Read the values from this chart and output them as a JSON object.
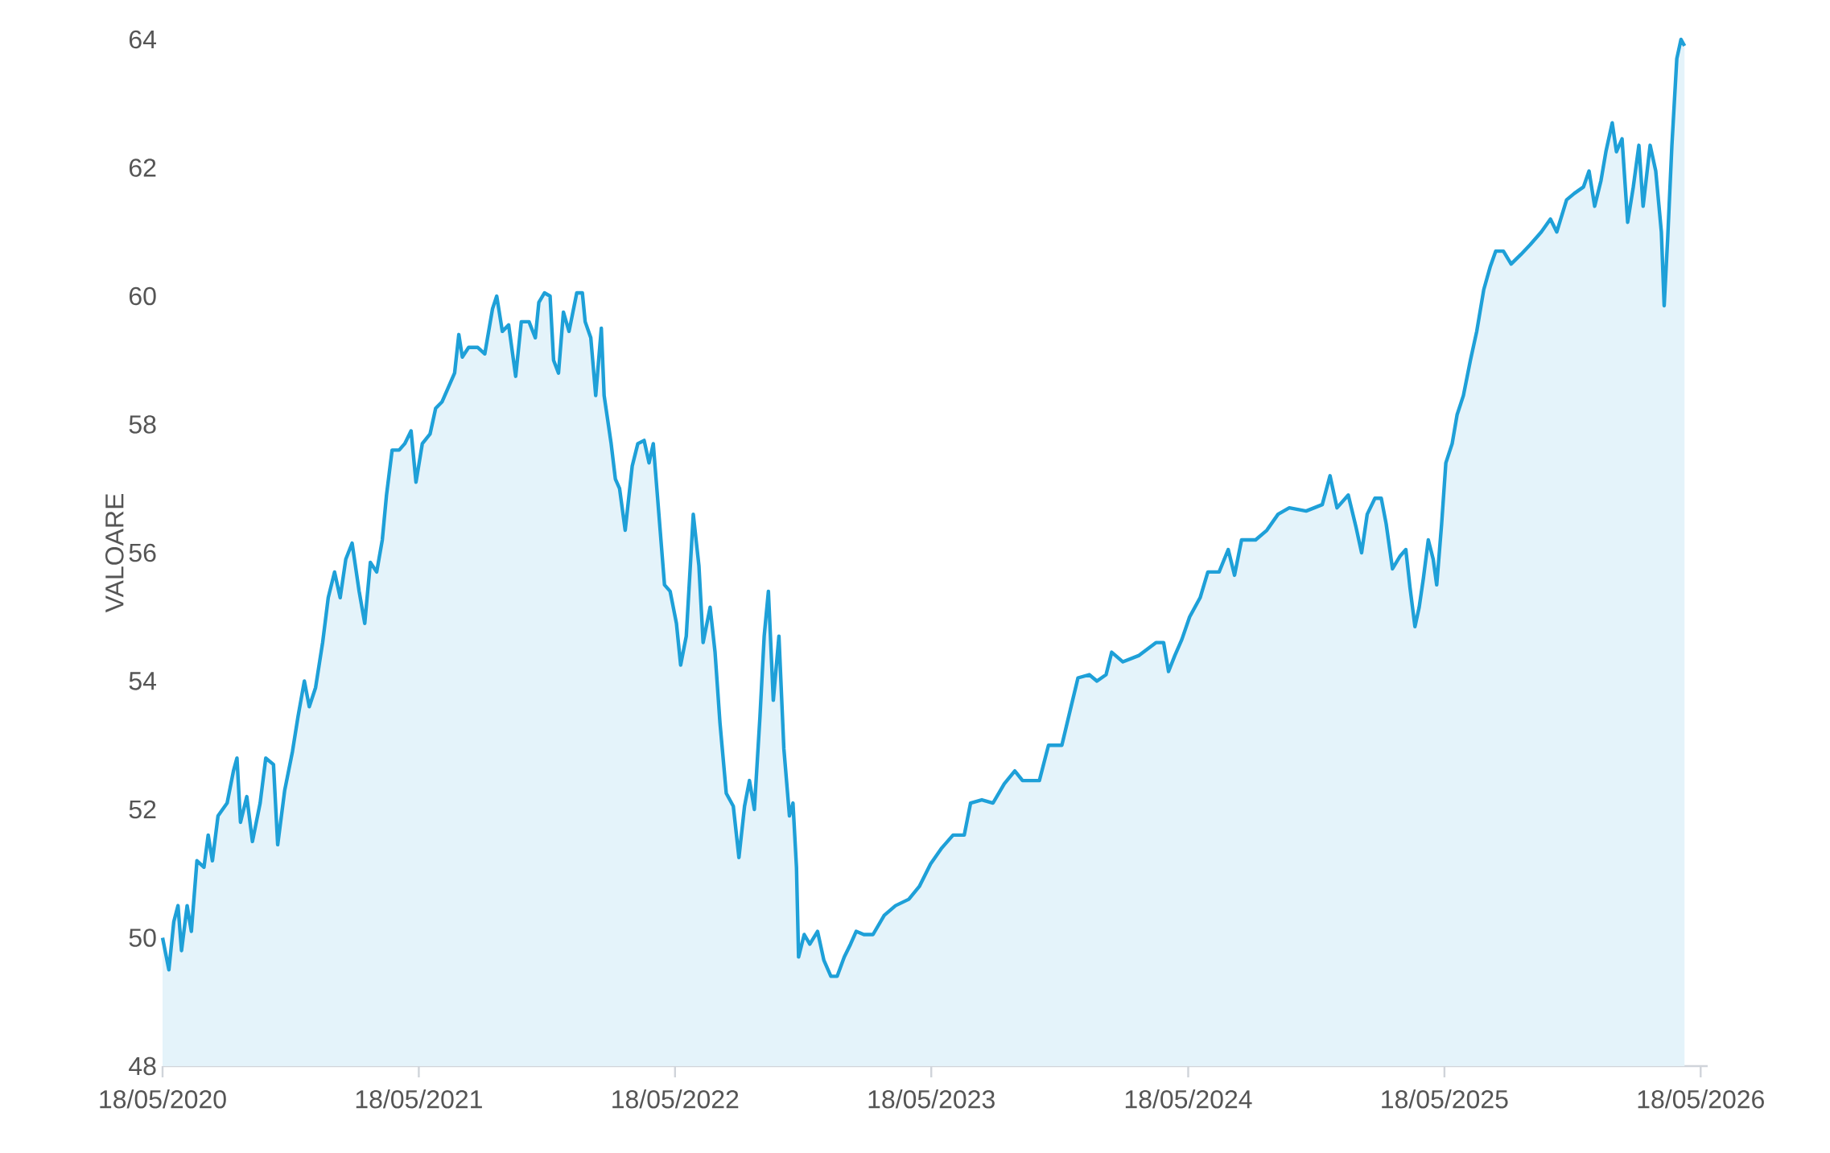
{
  "chart_data": {
    "type": "area",
    "ylabel": "VALOARE",
    "color": "#1ea0d8",
    "xlim": [
      "2020-05-18",
      "2026-05-28"
    ],
    "ylim": [
      48,
      64
    ],
    "yticks": [
      48,
      50,
      52,
      54,
      56,
      58,
      60,
      62,
      64
    ],
    "xticks": [
      {
        "value": "2020-05-18",
        "label": "18/05/2020"
      },
      {
        "value": "2021-05-18",
        "label": "18/05/2021"
      },
      {
        "value": "2022-05-18",
        "label": "18/05/2022"
      },
      {
        "value": "2023-05-18",
        "label": "18/05/2023"
      },
      {
        "value": "2024-05-18",
        "label": "18/05/2024"
      },
      {
        "value": "2025-05-18",
        "label": "18/05/2025"
      },
      {
        "value": "2026-05-18",
        "label": "18/05/2026"
      }
    ],
    "x": [
      "2020-05-18",
      "2020-05-27",
      "2020-06-03",
      "2020-06-09",
      "2020-06-14",
      "2020-06-22",
      "2020-06-28",
      "2020-07-06",
      "2020-07-16",
      "2020-07-22",
      "2020-07-28",
      "2020-08-05",
      "2020-08-18",
      "2020-08-27",
      "2020-09-01",
      "2020-09-06",
      "2020-09-15",
      "2020-09-23",
      "2020-10-04",
      "2020-10-12",
      "2020-10-23",
      "2020-10-29",
      "2020-11-08",
      "2020-11-19",
      "2020-11-27",
      "2020-12-06",
      "2020-12-13",
      "2020-12-22",
      "2021-01-01",
      "2021-01-09",
      "2021-01-18",
      "2021-01-26",
      "2021-02-03",
      "2021-02-12",
      "2021-02-22",
      "2021-03-02",
      "2021-03-10",
      "2021-03-19",
      "2021-03-27",
      "2021-04-02",
      "2021-04-10",
      "2021-04-20",
      "2021-04-28",
      "2021-05-07",
      "2021-05-14",
      "2021-05-23",
      "2021-06-03",
      "2021-06-11",
      "2021-06-20",
      "2021-06-30",
      "2021-07-08",
      "2021-07-14",
      "2021-07-19",
      "2021-07-28",
      "2021-08-10",
      "2021-08-20",
      "2021-08-31",
      "2021-09-06",
      "2021-09-14",
      "2021-09-23",
      "2021-10-03",
      "2021-10-11",
      "2021-10-22",
      "2021-10-31",
      "2021-11-05",
      "2021-11-13",
      "2021-11-21",
      "2021-11-26",
      "2021-12-03",
      "2021-12-10",
      "2021-12-18",
      "2021-12-29",
      "2022-01-06",
      "2022-01-10",
      "2022-01-18",
      "2022-01-25",
      "2022-02-02",
      "2022-02-06",
      "2022-02-16",
      "2022-02-22",
      "2022-02-28",
      "2022-03-08",
      "2022-03-18",
      "2022-03-26",
      "2022-04-04",
      "2022-04-11",
      "2022-04-17",
      "2022-04-25",
      "2022-05-03",
      "2022-05-11",
      "2022-05-20",
      "2022-05-26",
      "2022-06-03",
      "2022-06-13",
      "2022-06-21",
      "2022-06-27",
      "2022-07-07",
      "2022-07-14",
      "2022-07-21",
      "2022-07-30",
      "2022-08-09",
      "2022-08-17",
      "2022-08-25",
      "2022-09-01",
      "2022-09-08",
      "2022-09-16",
      "2022-09-22",
      "2022-09-28",
      "2022-10-05",
      "2022-10-13",
      "2022-10-20",
      "2022-10-28",
      "2022-11-02",
      "2022-11-07",
      "2022-11-10",
      "2022-11-18",
      "2022-11-26",
      "2022-12-07",
      "2022-12-16",
      "2022-12-26",
      "2023-01-04",
      "2023-01-14",
      "2023-01-23",
      "2023-01-31",
      "2023-02-11",
      "2023-02-24",
      "2023-03-12",
      "2023-03-28",
      "2023-04-16",
      "2023-05-01",
      "2023-05-17",
      "2023-06-02",
      "2023-06-18",
      "2023-07-04",
      "2023-07-13",
      "2023-07-29",
      "2023-08-14",
      "2023-08-30",
      "2023-09-14",
      "2023-09-25",
      "2023-10-19",
      "2023-11-01",
      "2023-11-20",
      "2023-12-02",
      "2023-12-13",
      "2023-12-29",
      "2024-01-09",
      "2024-01-22",
      "2024-01-30",
      "2024-02-15",
      "2024-03-09",
      "2024-04-02",
      "2024-04-13",
      "2024-04-20",
      "2024-04-29",
      "2024-05-09",
      "2024-05-20",
      "2024-06-04",
      "2024-06-15",
      "2024-07-01",
      "2024-07-14",
      "2024-07-23",
      "2024-08-02",
      "2024-08-22",
      "2024-09-07",
      "2024-09-23",
      "2024-10-09",
      "2024-11-02",
      "2024-11-25",
      "2024-12-06",
      "2024-12-16",
      "2025-01-01",
      "2025-01-12",
      "2025-01-20",
      "2025-01-28",
      "2025-02-08",
      "2025-02-17",
      "2025-02-24",
      "2025-03-05",
      "2025-03-16",
      "2025-03-24",
      "2025-03-30",
      "2025-04-06",
      "2025-04-12",
      "2025-04-18",
      "2025-04-25",
      "2025-05-02",
      "2025-05-07",
      "2025-05-14",
      "2025-05-20",
      "2025-05-29",
      "2025-06-05",
      "2025-06-14",
      "2025-06-24",
      "2025-07-03",
      "2025-07-13",
      "2025-07-22",
      "2025-07-30",
      "2025-08-10",
      "2025-08-21",
      "2025-09-04",
      "2025-09-17",
      "2025-10-03",
      "2025-10-16",
      "2025-10-25",
      "2025-11-08",
      "2025-11-19",
      "2025-12-02",
      "2025-12-10",
      "2025-12-18",
      "2025-12-27",
      "2026-01-03",
      "2026-01-12",
      "2026-01-18",
      "2026-01-26",
      "2026-02-03",
      "2026-02-11",
      "2026-02-19",
      "2026-02-25",
      "2026-03-07",
      "2026-03-15",
      "2026-03-23",
      "2026-03-27",
      "2026-04-01",
      "2026-04-07",
      "2026-04-14",
      "2026-04-20",
      "2026-04-25"
    ],
    "values": [
      50.0,
      49.5,
      50.25,
      50.5,
      49.8,
      50.5,
      50.1,
      51.2,
      51.1,
      51.6,
      51.2,
      51.9,
      52.1,
      52.6,
      52.8,
      51.8,
      52.2,
      51.5,
      52.1,
      52.8,
      52.7,
      51.45,
      52.3,
      52.9,
      53.45,
      54.0,
      53.6,
      53.9,
      54.6,
      55.3,
      55.7,
      55.3,
      55.9,
      56.15,
      55.4,
      54.9,
      55.85,
      55.7,
      56.2,
      56.9,
      57.6,
      57.6,
      57.7,
      57.9,
      57.1,
      57.7,
      57.85,
      58.25,
      58.35,
      58.6,
      58.8,
      59.4,
      59.05,
      59.2,
      59.2,
      59.1,
      59.8,
      60.0,
      59.45,
      59.55,
      58.75,
      59.6,
      59.6,
      59.35,
      59.9,
      60.05,
      60.0,
      59.0,
      58.8,
      59.75,
      59.45,
      60.05,
      60.05,
      59.6,
      59.35,
      58.45,
      59.5,
      58.45,
      57.7,
      57.15,
      57.0,
      56.35,
      57.35,
      57.7,
      57.75,
      57.4,
      57.7,
      56.6,
      55.5,
      55.4,
      54.9,
      54.25,
      54.7,
      56.6,
      55.8,
      54.6,
      55.15,
      54.45,
      53.35,
      52.25,
      52.05,
      51.25,
      52.05,
      52.45,
      52.0,
      53.45,
      54.7,
      55.4,
      53.7,
      54.7,
      52.95,
      51.9,
      52.1,
      51.1,
      49.7,
      50.05,
      49.9,
      50.1,
      49.65,
      49.4,
      49.4,
      49.7,
      49.9,
      50.1,
      50.05,
      50.05,
      50.35,
      50.5,
      50.6,
      50.8,
      51.15,
      51.4,
      51.6,
      51.6,
      52.1,
      52.15,
      52.1,
      52.4,
      52.6,
      52.45,
      52.45,
      53.0,
      53.0,
      53.55,
      54.05,
      54.1,
      54.0,
      54.1,
      54.45,
      54.3,
      54.4,
      54.6,
      54.6,
      54.15,
      54.4,
      54.65,
      55.0,
      55.3,
      55.7,
      55.7,
      56.05,
      55.65,
      56.2,
      56.2,
      56.35,
      56.6,
      56.7,
      56.65,
      56.75,
      57.2,
      56.7,
      56.9,
      56.4,
      56.0,
      56.6,
      56.85,
      56.85,
      56.45,
      55.75,
      55.95,
      56.05,
      55.45,
      54.85,
      55.15,
      55.6,
      56.2,
      55.9,
      55.5,
      56.45,
      57.4,
      57.7,
      58.15,
      58.45,
      59.0,
      59.45,
      60.1,
      60.45,
      60.7,
      60.7,
      60.5,
      60.65,
      60.8,
      61.0,
      61.2,
      61.0,
      61.5,
      61.6,
      61.7,
      61.95,
      61.4,
      61.8,
      62.25,
      62.7,
      62.25,
      62.45,
      61.15,
      61.7,
      62.35,
      61.4,
      62.35,
      61.95,
      61.0,
      59.85,
      60.9,
      62.35,
      63.7,
      64.0,
      63.9
    ]
  }
}
